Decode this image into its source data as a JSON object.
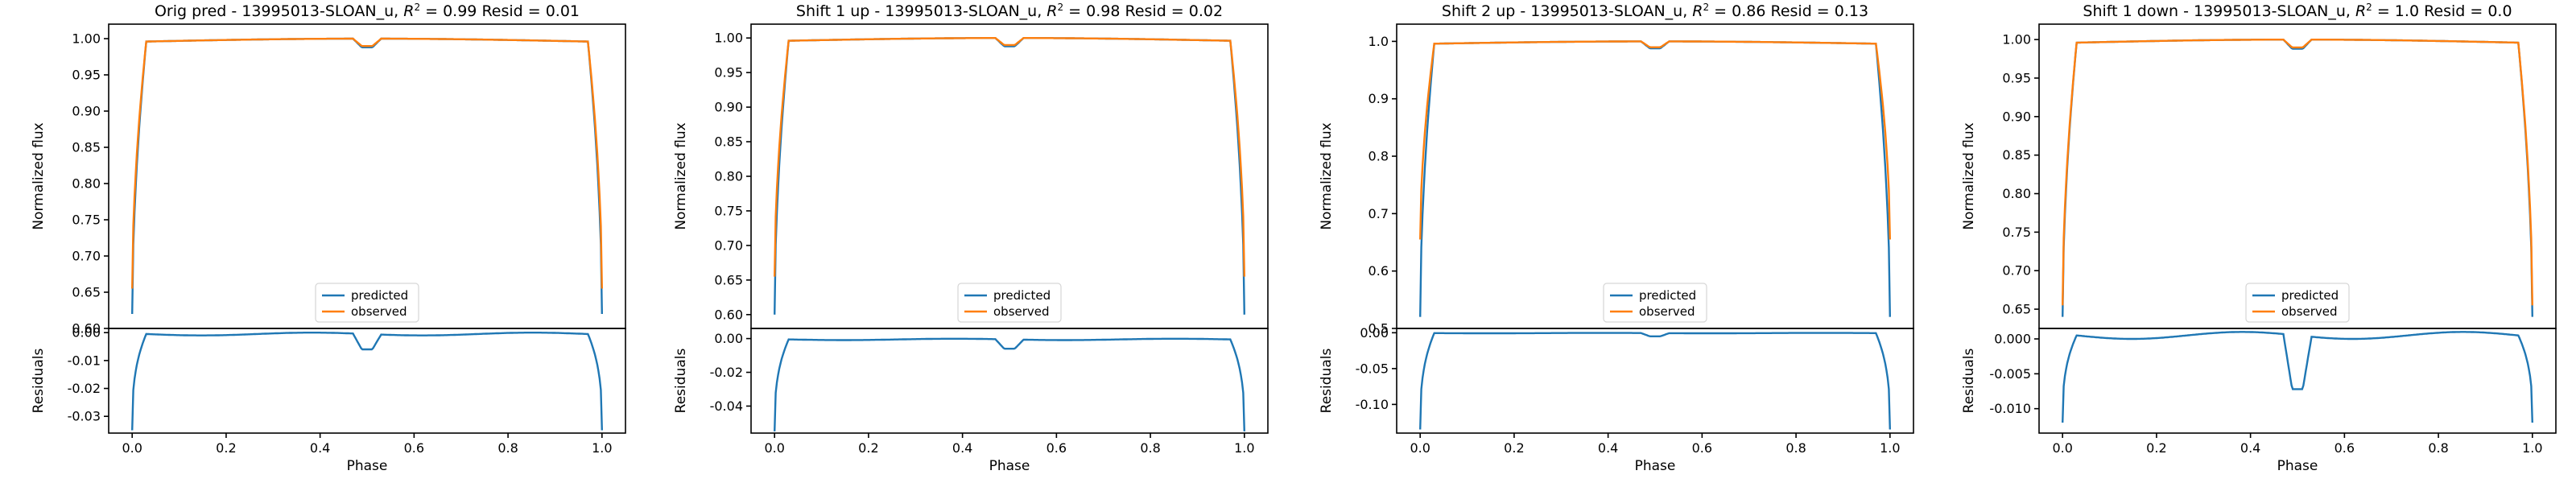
{
  "chart_data": [
    {
      "type": "line",
      "title": "Orig pred - 13995013-SLOAN_u, $R^2 = 0.99$ Resid = 0.01",
      "title_parts": {
        "prefix": "Orig pred - 13995013-SLOAN_u, ",
        "r2_value": "0.99",
        "suffix": " Resid = 0.01"
      },
      "xlabel": "Phase",
      "ylabel_top": "Normalized flux",
      "ylabel_bottom": "Residuals",
      "xlim": [
        -0.05,
        1.05
      ],
      "xticks": [
        "0.0",
        "0.2",
        "0.4",
        "0.6",
        "0.8",
        "1.0"
      ],
      "top": {
        "ylim": [
          0.6,
          1.02
        ],
        "yticks": [
          "0.60",
          "0.65",
          "0.70",
          "0.75",
          "0.80",
          "0.85",
          "0.90",
          "0.95",
          "1.00"
        ],
        "predicted_min": 0.62,
        "observed_min": 0.655,
        "eclipse_depth": 0.012,
        "legend": [
          "predicted",
          "observed"
        ]
      },
      "bottom": {
        "ylim": [
          -0.036,
          0.0015
        ],
        "yticks": [
          "0.00",
          "-0.01",
          "-0.02",
          "-0.03"
        ],
        "resid_min": -0.035,
        "dip": -0.006,
        "flat": -0.0005,
        "bow": -0.001
      },
      "series_colors": {
        "predicted": "#1f77b4",
        "observed": "#ff7f0e"
      }
    },
    {
      "type": "line",
      "title": "Shift 1 up - 13995013-SLOAN_u, $R^2 = 0.98$ Resid = 0.02",
      "title_parts": {
        "prefix": "Shift 1 up - 13995013-SLOAN_u, ",
        "r2_value": "0.98",
        "suffix": " Resid = 0.02"
      },
      "xlabel": "Phase",
      "ylabel_top": "Normalized flux",
      "ylabel_bottom": "Residuals",
      "xlim": [
        -0.05,
        1.05
      ],
      "xticks": [
        "0.0",
        "0.2",
        "0.4",
        "0.6",
        "0.8",
        "1.0"
      ],
      "top": {
        "ylim": [
          0.58,
          1.02
        ],
        "yticks": [
          "0.60",
          "0.65",
          "0.70",
          "0.75",
          "0.80",
          "0.85",
          "0.90",
          "0.95",
          "1.00"
        ],
        "predicted_min": 0.6,
        "observed_min": 0.655,
        "eclipse_depth": 0.012,
        "legend": [
          "predicted",
          "observed"
        ]
      },
      "bottom": {
        "ylim": [
          -0.056,
          0.006
        ],
        "yticks": [
          "0.00",
          "-0.02",
          "-0.04"
        ],
        "resid_min": -0.055,
        "dip": -0.006,
        "flat": -0.0005,
        "bow": -0.0008
      },
      "series_colors": {
        "predicted": "#1f77b4",
        "observed": "#ff7f0e"
      }
    },
    {
      "type": "line",
      "title": "Shift 2 up - 13995013-SLOAN_u, $R^2 = 0.86$ Resid = 0.13",
      "title_parts": {
        "prefix": "Shift 2 up - 13995013-SLOAN_u, ",
        "r2_value": "0.86",
        "suffix": " Resid = 0.13"
      },
      "xlabel": "Phase",
      "ylabel_top": "Normalized flux",
      "ylabel_bottom": "Residuals",
      "xlim": [
        -0.05,
        1.05
      ],
      "xticks": [
        "0.0",
        "0.2",
        "0.4",
        "0.6",
        "0.8",
        "1.0"
      ],
      "top": {
        "ylim": [
          0.5,
          1.03
        ],
        "yticks": [
          "0.5",
          "0.6",
          "0.7",
          "0.8",
          "0.9",
          "1.0"
        ],
        "predicted_min": 0.52,
        "observed_min": 0.655,
        "eclipse_depth": 0.012,
        "legend": [
          "predicted",
          "observed"
        ]
      },
      "bottom": {
        "ylim": [
          -0.14,
          0.006
        ],
        "yticks": [
          "0.00",
          "-0.05",
          "-0.10"
        ],
        "resid_min": -0.135,
        "dip": -0.005,
        "flat": -0.0005,
        "bow": -0.0005
      },
      "series_colors": {
        "predicted": "#1f77b4",
        "observed": "#ff7f0e"
      }
    },
    {
      "type": "line",
      "title": "Shift 1 down - 13995013-SLOAN_u, $R^2 = 1.0$ Resid = 0.0",
      "title_parts": {
        "prefix": "Shift 1 down - 13995013-SLOAN_u, ",
        "r2_value": "1.0",
        "suffix": " Resid = 0.0"
      },
      "xlabel": "Phase",
      "ylabel_top": "Normalized flux",
      "ylabel_bottom": "Residuals",
      "xlim": [
        -0.05,
        1.05
      ],
      "xticks": [
        "0.0",
        "0.2",
        "0.4",
        "0.6",
        "0.8",
        "1.0"
      ],
      "top": {
        "ylim": [
          0.625,
          1.02
        ],
        "yticks": [
          "0.65",
          "0.70",
          "0.75",
          "0.80",
          "0.85",
          "0.90",
          "0.95",
          "1.00"
        ],
        "predicted_min": 0.64,
        "observed_min": 0.655,
        "eclipse_depth": 0.012,
        "legend": [
          "predicted",
          "observed"
        ]
      },
      "bottom": {
        "ylim": [
          -0.0135,
          0.0015
        ],
        "yticks": [
          "0.000",
          "-0.005",
          "-0.010"
        ],
        "resid_min": -0.012,
        "dip": -0.0072,
        "flat": 0.0005,
        "bow": -0.001
      },
      "series_colors": {
        "predicted": "#1f77b4",
        "observed": "#ff7f0e"
      }
    }
  ]
}
